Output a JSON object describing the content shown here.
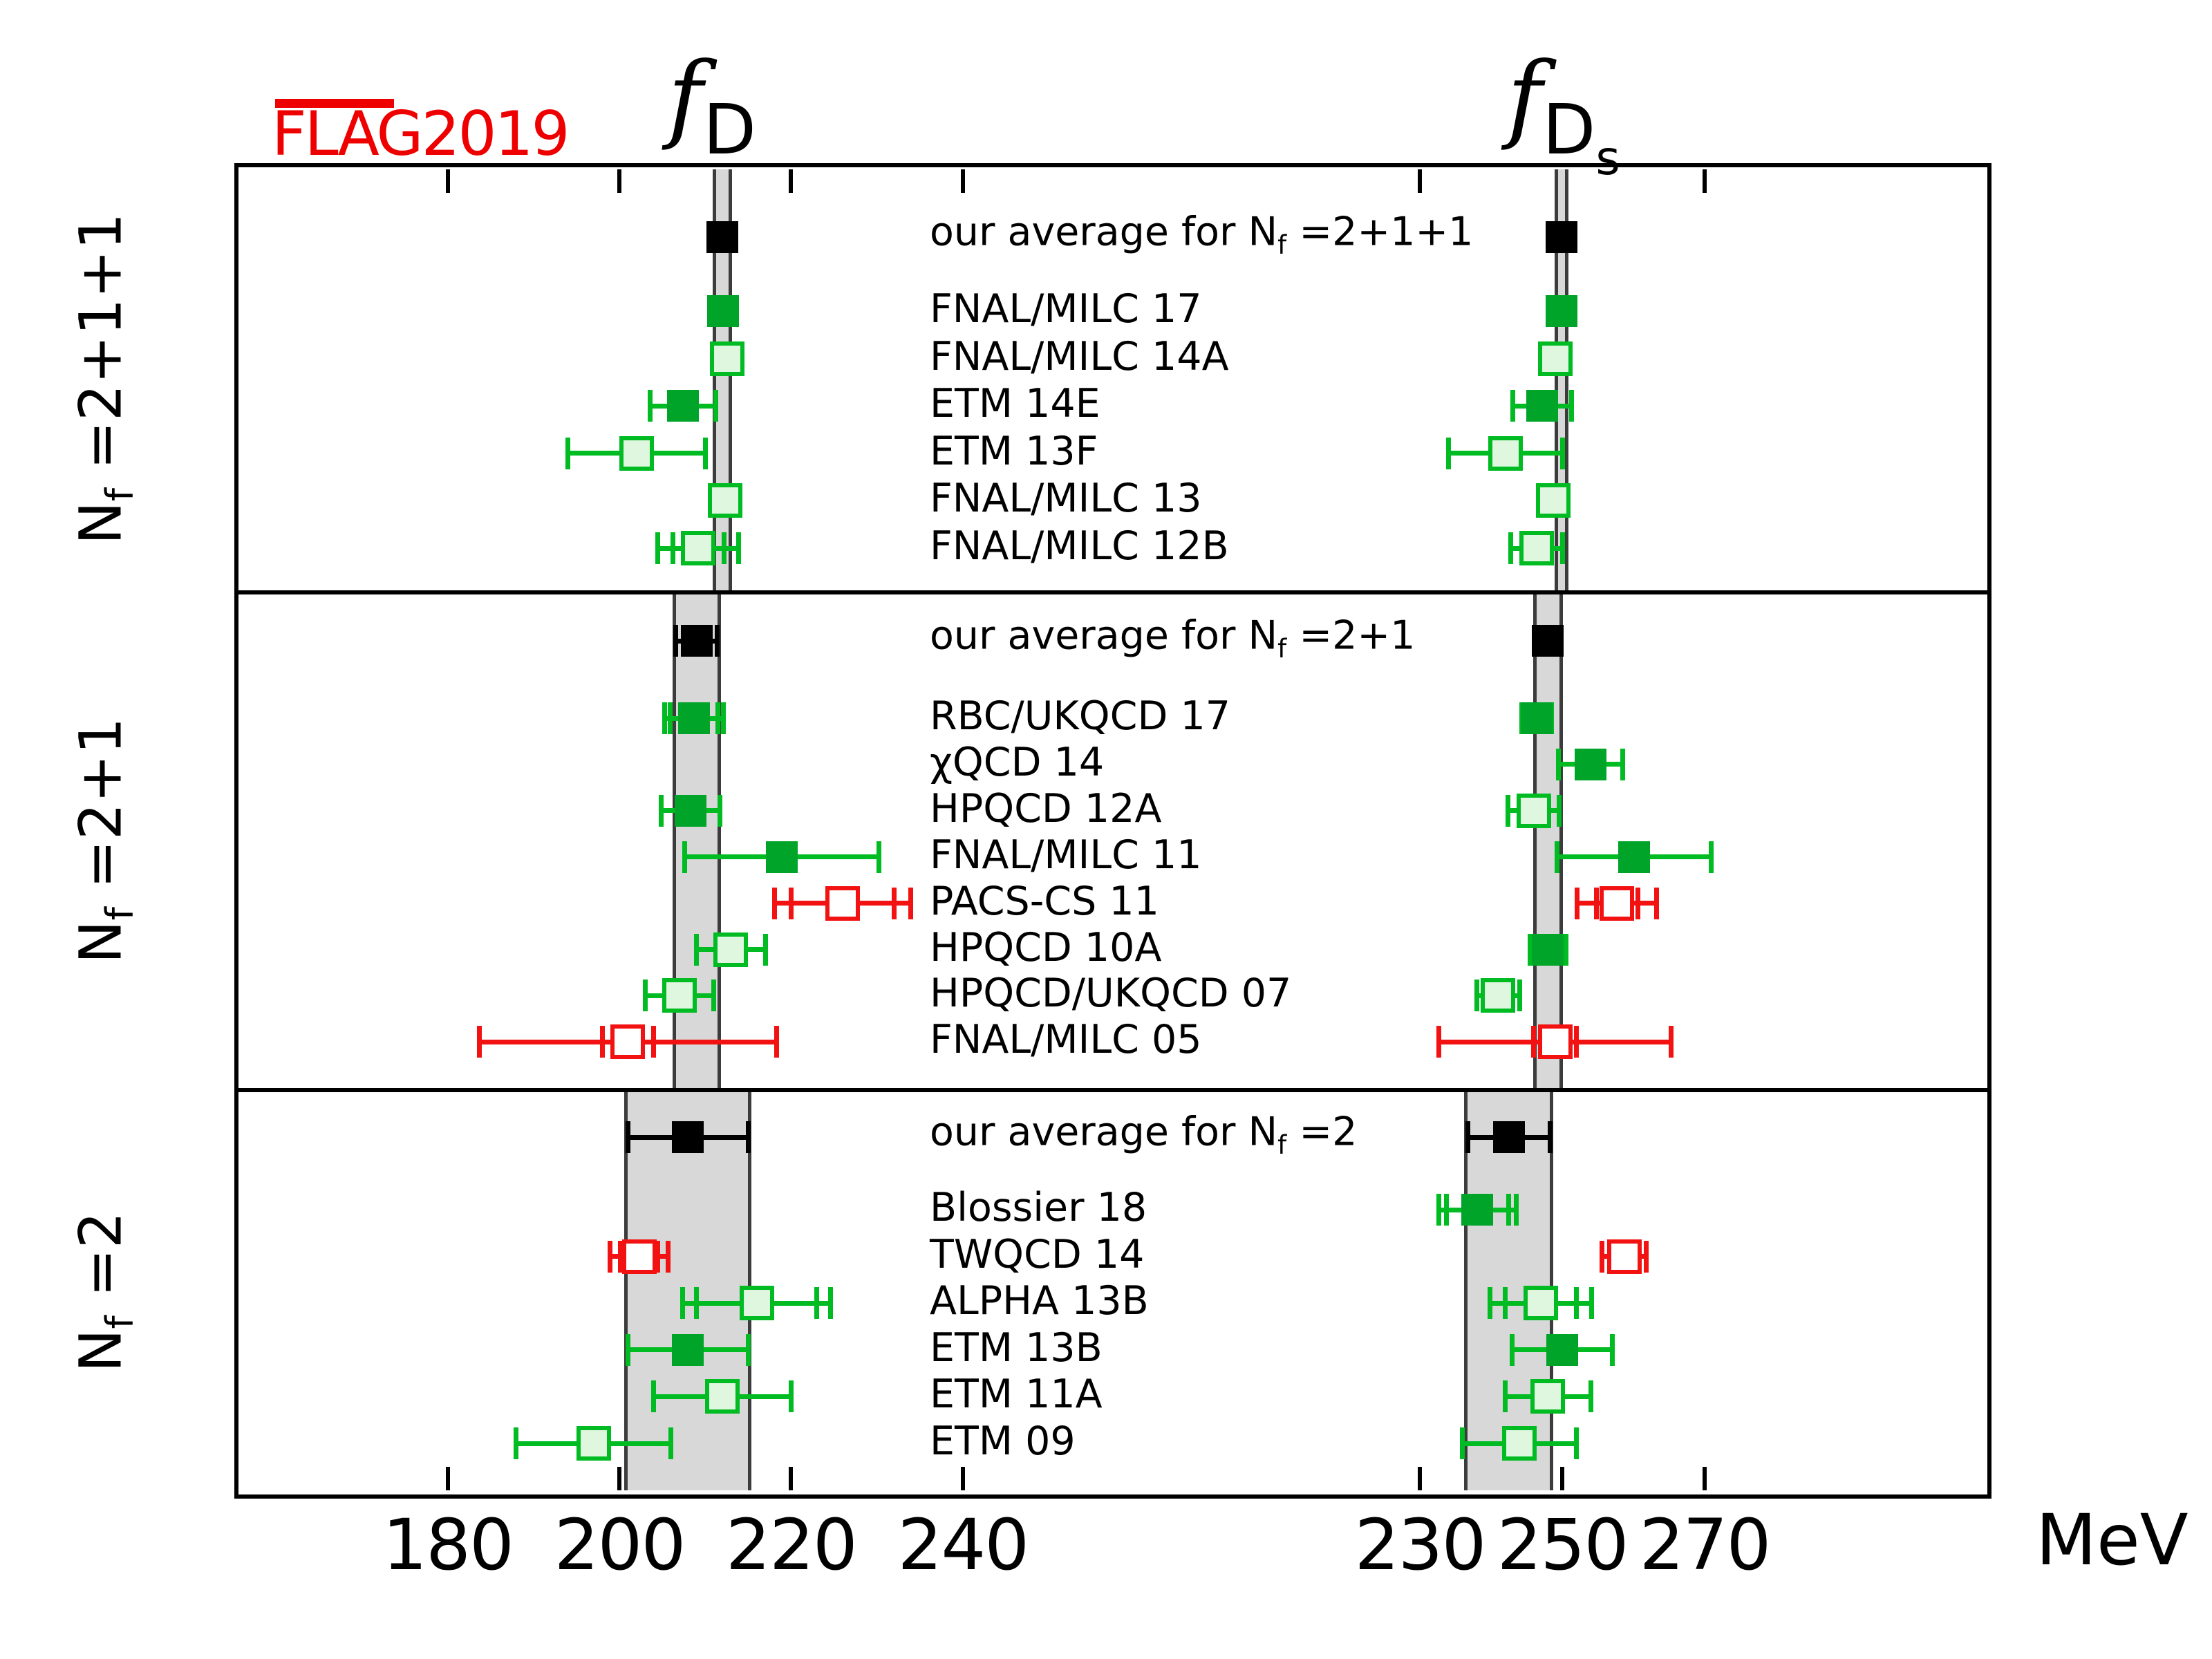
{
  "flag_logo": {
    "text": "FLAG2019",
    "color": "#ee0000"
  },
  "titles": {
    "left": {
      "f": "f",
      "sub": "D"
    },
    "right": {
      "f": "f",
      "sub": "D",
      "subsub": "s"
    }
  },
  "axis": {
    "unit": "MeV",
    "left_ticks": [
      180,
      200,
      220,
      240
    ],
    "right_ticks": [
      230,
      250,
      270
    ]
  },
  "colors": {
    "green_fill": "#00a428",
    "green_line": "#00bb22",
    "pale_fill": "#dff6df",
    "red": "#f21212",
    "black": "#000000",
    "band_fill": "#d8d8d8",
    "band_border": "#3c3c3c"
  },
  "chart_data": {
    "type": "scatter",
    "subtype": "forest-plot",
    "unit": "MeV",
    "panels": [
      {
        "id": "fD",
        "title": "f_D",
        "ticks": [
          180,
          200,
          220,
          240
        ]
      },
      {
        "id": "fDs",
        "title": "f_Ds",
        "ticks": [
          230,
          250,
          270
        ]
      }
    ],
    "sections": [
      {
        "nf_label": {
          "pre": "N",
          "sub": "f",
          "post": " =2+1+1"
        },
        "average_label": {
          "pre": "our average for N",
          "sub": "f",
          "post": " =2+1+1"
        },
        "bands": {
          "fD": [
            211.3,
            212.7
          ],
          "fDs": [
            249.4,
            250.4
          ]
        },
        "average": {
          "fD": {
            "v": 212.0,
            "e": 0.7
          },
          "fDs": {
            "v": 249.9,
            "e": 0.5
          }
        },
        "rows": [
          {
            "label": "FNAL/MILC 17",
            "fD": {
              "v": 212.1,
              "e": 0.6,
              "c": "green"
            },
            "fDs": {
              "v": 249.9,
              "e": 0.4,
              "c": "green"
            }
          },
          {
            "label": "FNAL/MILC 14A",
            "fD": {
              "v": 212.6,
              "e": 1.1,
              "c": "pale"
            },
            "fDs": {
              "v": 249.0,
              "e": 1.3,
              "c": "pale"
            }
          },
          {
            "label": "ETM 14E",
            "fD": {
              "v": 207.4,
              "e": 3.8,
              "c": "green"
            },
            "fDs": {
              "v": 247.2,
              "e": 4.1,
              "c": "green"
            }
          },
          {
            "label": "ETM 13F",
            "fD": {
              "v": 202.0,
              "e": 8.0,
              "c": "pale"
            },
            "fDs": {
              "v": 242.0,
              "e": 8.0,
              "c": "pale"
            }
          },
          {
            "label": "FNAL/MILC 13",
            "fD": {
              "v": 212.3,
              "e": 1.0,
              "c": "pale"
            },
            "fDs": {
              "v": 248.7,
              "e": 1.0,
              "c": "pale"
            }
          },
          {
            "label": "FNAL/MILC 12B",
            "fD": {
              "v": 209.2,
              "e": 4.7,
              "ei": 3.0,
              "c": "pale"
            },
            "fDs": {
              "v": 246.4,
              "e": 3.6,
              "c": "pale"
            }
          }
        ]
      },
      {
        "nf_label": {
          "pre": "N",
          "sub": "f",
          "post": " =2+1"
        },
        "average_label": {
          "pre": "our average for N",
          "sub": "f",
          "post": " =2+1"
        },
        "bands": {
          "fD": [
            206.6,
            211.4
          ],
          "fDs": [
            246.4,
            249.6
          ]
        },
        "average": {
          "fD": {
            "v": 209.0,
            "e": 2.4
          },
          "fDs": {
            "v": 248.0,
            "e": 1.6
          }
        },
        "rows": [
          {
            "label": "RBC/UKQCD 17",
            "fD": {
              "v": 208.7,
              "e": 3.4,
              "ei": 2.8,
              "c": "green"
            },
            "fDs": {
              "v": 246.4,
              "e": 2.1,
              "c": "green"
            }
          },
          {
            "label": "χQCD 14",
            "fDs": {
              "v": 254.0,
              "e": 4.5,
              "c": "green"
            }
          },
          {
            "label": "HPQCD 12A",
            "fD": {
              "v": 208.3,
              "e": 3.4,
              "ei": 1.0,
              "c": "green"
            },
            "fDs": {
              "v": 246.0,
              "e": 3.6,
              "c": "pale"
            }
          },
          {
            "label": "FNAL/MILC 11",
            "fD": {
              "v": 218.9,
              "e": 11.3,
              "c": "green"
            },
            "fDs": {
              "v": 260.1,
              "e": 10.8,
              "c": "green"
            }
          },
          {
            "label": "PACS-CS 11",
            "fD": {
              "v": 226.0,
              "e": 7.9,
              "ei": 6.0,
              "c": "red"
            },
            "fDs": {
              "v": 257.7,
              "e": 5.6,
              "ei": 2.9,
              "c": "red"
            }
          },
          {
            "label": "HPQCD 10A",
            "fD": {
              "v": 213.0,
              "e": 4.0,
              "c": "pale"
            },
            "fDs": {
              "v": 248.0,
              "e": 2.5,
              "c": "green"
            }
          },
          {
            "label": "HPQCD/UKQCD 07",
            "fD": {
              "v": 207.0,
              "e": 4.0,
              "c": "pale"
            },
            "fDs": {
              "v": 241.0,
              "e": 3.0,
              "c": "pale"
            }
          },
          {
            "label": "FNAL/MILC 05",
            "fD": {
              "v": 201.0,
              "e": 17.3,
              "ei": 3.0,
              "c": "red"
            },
            "fDs": {
              "v": 249.0,
              "e": 16.3,
              "ei": 3.0,
              "c": "red"
            }
          }
        ]
      },
      {
        "nf_label": {
          "pre": "N",
          "sub": "f",
          "post": " =2"
        },
        "average_label": {
          "pre": "our average for N",
          "sub": "f",
          "post": " =2"
        },
        "bands": {
          "fD": [
            201.0,
            215.0
          ],
          "fDs": [
            236.7,
            248.3
          ]
        },
        "average": {
          "fD": {
            "v": 208.0,
            "e": 7.0
          },
          "fDs": {
            "v": 242.5,
            "e": 5.8
          }
        },
        "rows": [
          {
            "label": "Blossier 18",
            "fDs": {
              "v": 238.1,
              "e": 5.4,
              "ei": 4.4,
              "c": "green"
            }
          },
          {
            "label": "TWQCD 14",
            "fD": {
              "v": 202.3,
              "e": 3.4,
              "ei": 2.2,
              "c": "red"
            },
            "fDs": {
              "v": 258.7,
              "e": 3.1,
              "c": "red"
            }
          },
          {
            "label": "ALPHA 13B",
            "fD": {
              "v": 216.0,
              "e": 8.6,
              "ei": 7.0,
              "c": "pale"
            },
            "fDs": {
              "v": 247.0,
              "e": 7.1,
              "ei": 5.0,
              "c": "pale"
            }
          },
          {
            "label": "ETM 13B",
            "fD": {
              "v": 208.0,
              "e": 7.0,
              "c": "green"
            },
            "fDs": {
              "v": 250.0,
              "e": 7.0,
              "c": "green"
            }
          },
          {
            "label": "ETM 11A",
            "fD": {
              "v": 212.0,
              "e": 8.0,
              "c": "pale"
            },
            "fDs": {
              "v": 248.0,
              "e": 6.0,
              "c": "pale"
            }
          },
          {
            "label": "ETM 09",
            "fD": {
              "v": 197.0,
              "e": 9.0,
              "c": "pale"
            },
            "fDs": {
              "v": 244.0,
              "e": 8.0,
              "c": "pale"
            }
          }
        ]
      }
    ]
  }
}
